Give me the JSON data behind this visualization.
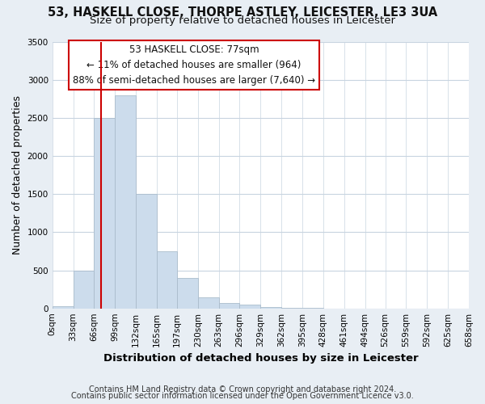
{
  "title": "53, HASKELL CLOSE, THORPE ASTLEY, LEICESTER, LE3 3UA",
  "subtitle": "Size of property relative to detached houses in Leicester",
  "xlabel": "Distribution of detached houses by size in Leicester",
  "ylabel": "Number of detached properties",
  "bin_edges": [
    0,
    33,
    66,
    99,
    132,
    165,
    197,
    230,
    263,
    296,
    329,
    362,
    395,
    428,
    461,
    494,
    526,
    559,
    592,
    625,
    658
  ],
  "bin_labels": [
    "0sqm",
    "33sqm",
    "66sqm",
    "99sqm",
    "132sqm",
    "165sqm",
    "197sqm",
    "230sqm",
    "263sqm",
    "296sqm",
    "329sqm",
    "362sqm",
    "395sqm",
    "428sqm",
    "461sqm",
    "494sqm",
    "526sqm",
    "559sqm",
    "592sqm",
    "625sqm",
    "658sqm"
  ],
  "bar_heights": [
    30,
    500,
    2500,
    2800,
    1500,
    750,
    400,
    150,
    70,
    50,
    15,
    5,
    2,
    0,
    0,
    0,
    0,
    0,
    0,
    0
  ],
  "bar_color": "#ccdcec",
  "bar_edge_color": "#aabccc",
  "property_line_x": 77,
  "property_line_color": "#cc0000",
  "ylim": [
    0,
    3500
  ],
  "yticks": [
    0,
    500,
    1000,
    1500,
    2000,
    2500,
    3000,
    3500
  ],
  "annotation_title": "53 HASKELL CLOSE: 77sqm",
  "annotation_line1": "← 11% of detached houses are smaller (964)",
  "annotation_line2": "88% of semi-detached houses are larger (7,640) →",
  "annotation_box_color": "#cc0000",
  "footer1": "Contains HM Land Registry data © Crown copyright and database right 2024.",
  "footer2": "Contains public sector information licensed under the Open Government Licence v3.0.",
  "background_color": "#e8eef4",
  "plot_background_color": "#ffffff",
  "grid_color": "#c8d4e0",
  "title_fontsize": 10.5,
  "subtitle_fontsize": 9.5,
  "xlabel_fontsize": 9.5,
  "ylabel_fontsize": 9,
  "tick_fontsize": 7.5,
  "annotation_fontsize": 8.5,
  "footer_fontsize": 7
}
